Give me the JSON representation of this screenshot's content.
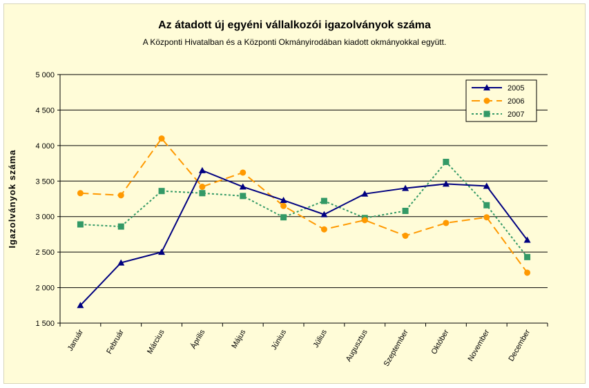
{
  "chart_data": {
    "type": "line",
    "title": "Az átadott új egyéni vállalkozói  igazolványok száma",
    "subtitle": "A Központi Hivatalban és a Központi Okmányirodában kiadott okmányokkal együtt.",
    "ylabel": "Igazolványok száma",
    "xlabel": "",
    "ylim": [
      1500,
      5000
    ],
    "yticks": [
      1500,
      2000,
      2500,
      3000,
      3500,
      4000,
      4500,
      5000
    ],
    "ytick_labels": [
      "1 500",
      "2 000",
      "2 500",
      "3 000",
      "3 500",
      "4 000",
      "4 500",
      "5 000"
    ],
    "grid": "horizontal",
    "legend_position": "top-right",
    "categories": [
      "Január",
      "Február",
      "Március",
      "Április",
      "Május",
      "Június",
      "Július",
      "Augusztus",
      "Szeptember",
      "Október",
      "November",
      "December"
    ],
    "series": [
      {
        "name": "2005",
        "color": "#000080",
        "marker": "triangle",
        "dash": "solid",
        "values": [
          1750,
          2350,
          2500,
          3650,
          3420,
          3230,
          3030,
          3320,
          3400,
          3460,
          3430,
          2670
        ]
      },
      {
        "name": "2006",
        "color": "#ff9900",
        "marker": "circle",
        "dash": "long-dash",
        "values": [
          3330,
          3300,
          4100,
          3420,
          3620,
          3150,
          2820,
          2950,
          2730,
          2910,
          2990,
          2210
        ]
      },
      {
        "name": "2007",
        "color": "#339966",
        "marker": "square",
        "dash": "dotted",
        "values": [
          2890,
          2860,
          3360,
          3330,
          3290,
          2990,
          3220,
          2980,
          3080,
          3770,
          3160,
          2430
        ]
      }
    ]
  }
}
